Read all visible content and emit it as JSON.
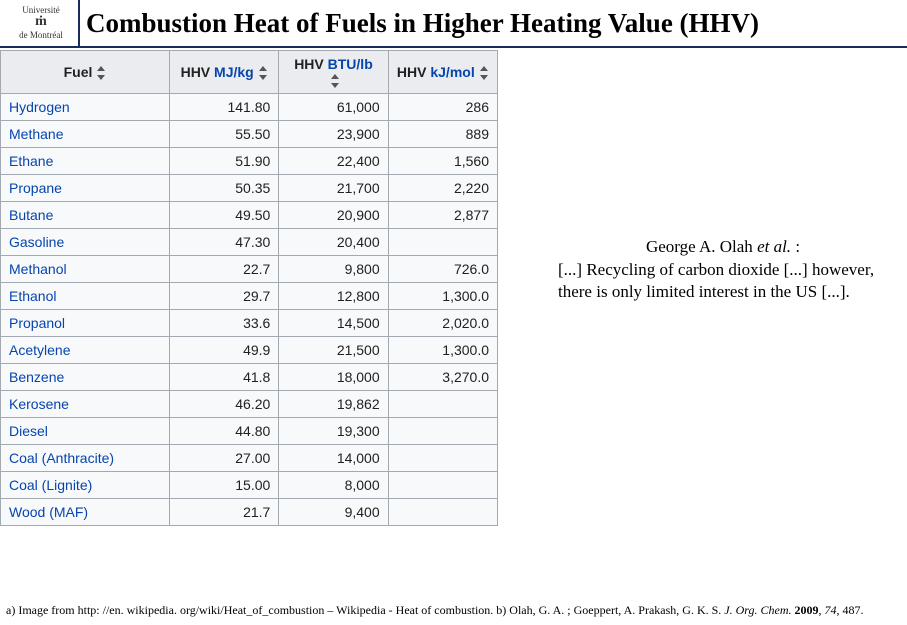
{
  "logo": {
    "top": "Université",
    "icon": "ṁ",
    "bottom": "de Montréal"
  },
  "title": "Combustion Heat of Fuels in Higher Heating Value (HHV)",
  "table": {
    "headers": [
      {
        "label": "Fuel"
      },
      {
        "plain": "HHV ",
        "link": "MJ/kg"
      },
      {
        "plain": "HHV ",
        "link": "BTU/lb"
      },
      {
        "plain": "HHV ",
        "link": "kJ/mol"
      }
    ],
    "col_widths": [
      "34%",
      "22%",
      "22%",
      "22%"
    ],
    "rows": [
      {
        "fuel": "Hydrogen",
        "mj": "141.80",
        "btu": "61,000",
        "kj": "286"
      },
      {
        "fuel": "Methane",
        "mj": "55.50",
        "btu": "23,900",
        "kj": "889"
      },
      {
        "fuel": "Ethane",
        "mj": "51.90",
        "btu": "22,400",
        "kj": "1,560"
      },
      {
        "fuel": "Propane",
        "mj": "50.35",
        "btu": "21,700",
        "kj": "2,220"
      },
      {
        "fuel": "Butane",
        "mj": "49.50",
        "btu": "20,900",
        "kj": "2,877"
      },
      {
        "fuel": "Gasoline",
        "mj": "47.30",
        "btu": "20,400",
        "kj": ""
      },
      {
        "fuel": "Methanol",
        "mj": "22.7",
        "btu": "9,800",
        "kj": "726.0"
      },
      {
        "fuel": "Ethanol",
        "mj": "29.7",
        "btu": "12,800",
        "kj": "1,300.0"
      },
      {
        "fuel": "Propanol",
        "mj": "33.6",
        "btu": "14,500",
        "kj": "2,020.0"
      },
      {
        "fuel": "Acetylene",
        "mj": "49.9",
        "btu": "21,500",
        "kj": "1,300.0"
      },
      {
        "fuel": "Benzene",
        "mj": "41.8",
        "btu": "18,000",
        "kj": "3,270.0"
      },
      {
        "fuel": "Kerosene",
        "mj": "46.20",
        "btu": "19,862",
        "kj": ""
      },
      {
        "fuel": "Diesel",
        "mj": "44.80",
        "btu": "19,300",
        "kj": ""
      },
      {
        "fuel": "Coal (Anthracite)",
        "mj": "27.00",
        "btu": "14,000",
        "kj": ""
      },
      {
        "fuel": "Coal (Lignite)",
        "mj": "15.00",
        "btu": "8,000",
        "kj": ""
      },
      {
        "fuel": "Wood (MAF)",
        "mj": "21.7",
        "btu": "9,400",
        "kj": ""
      }
    ]
  },
  "quote": {
    "author_prefix": "George A. Olah ",
    "author_etal": "et al.",
    "author_suffix": " :",
    "body": "[...] Recycling of carbon dioxide [...] however, there is only limited interest in the US [...]."
  },
  "footer": {
    "a_prefix": "a) Image from http: //en. wikipedia. org/wiki/Heat_of_combustion – Wikipedia - Heat of combustion. b) Olah, G. A. ; Goeppert, A. Prakash, G. K. S. ",
    "journal": "J. Org. Chem.",
    "year": "2009",
    "sep1": ", ",
    "vol": "74",
    "sep2": ", 487."
  },
  "colors": {
    "border": "#1a2b5c",
    "link": "#0645ad",
    "table_border": "#a2a9b1",
    "th_bg": "#eaecf0",
    "td_bg": "#f8f9fa"
  }
}
